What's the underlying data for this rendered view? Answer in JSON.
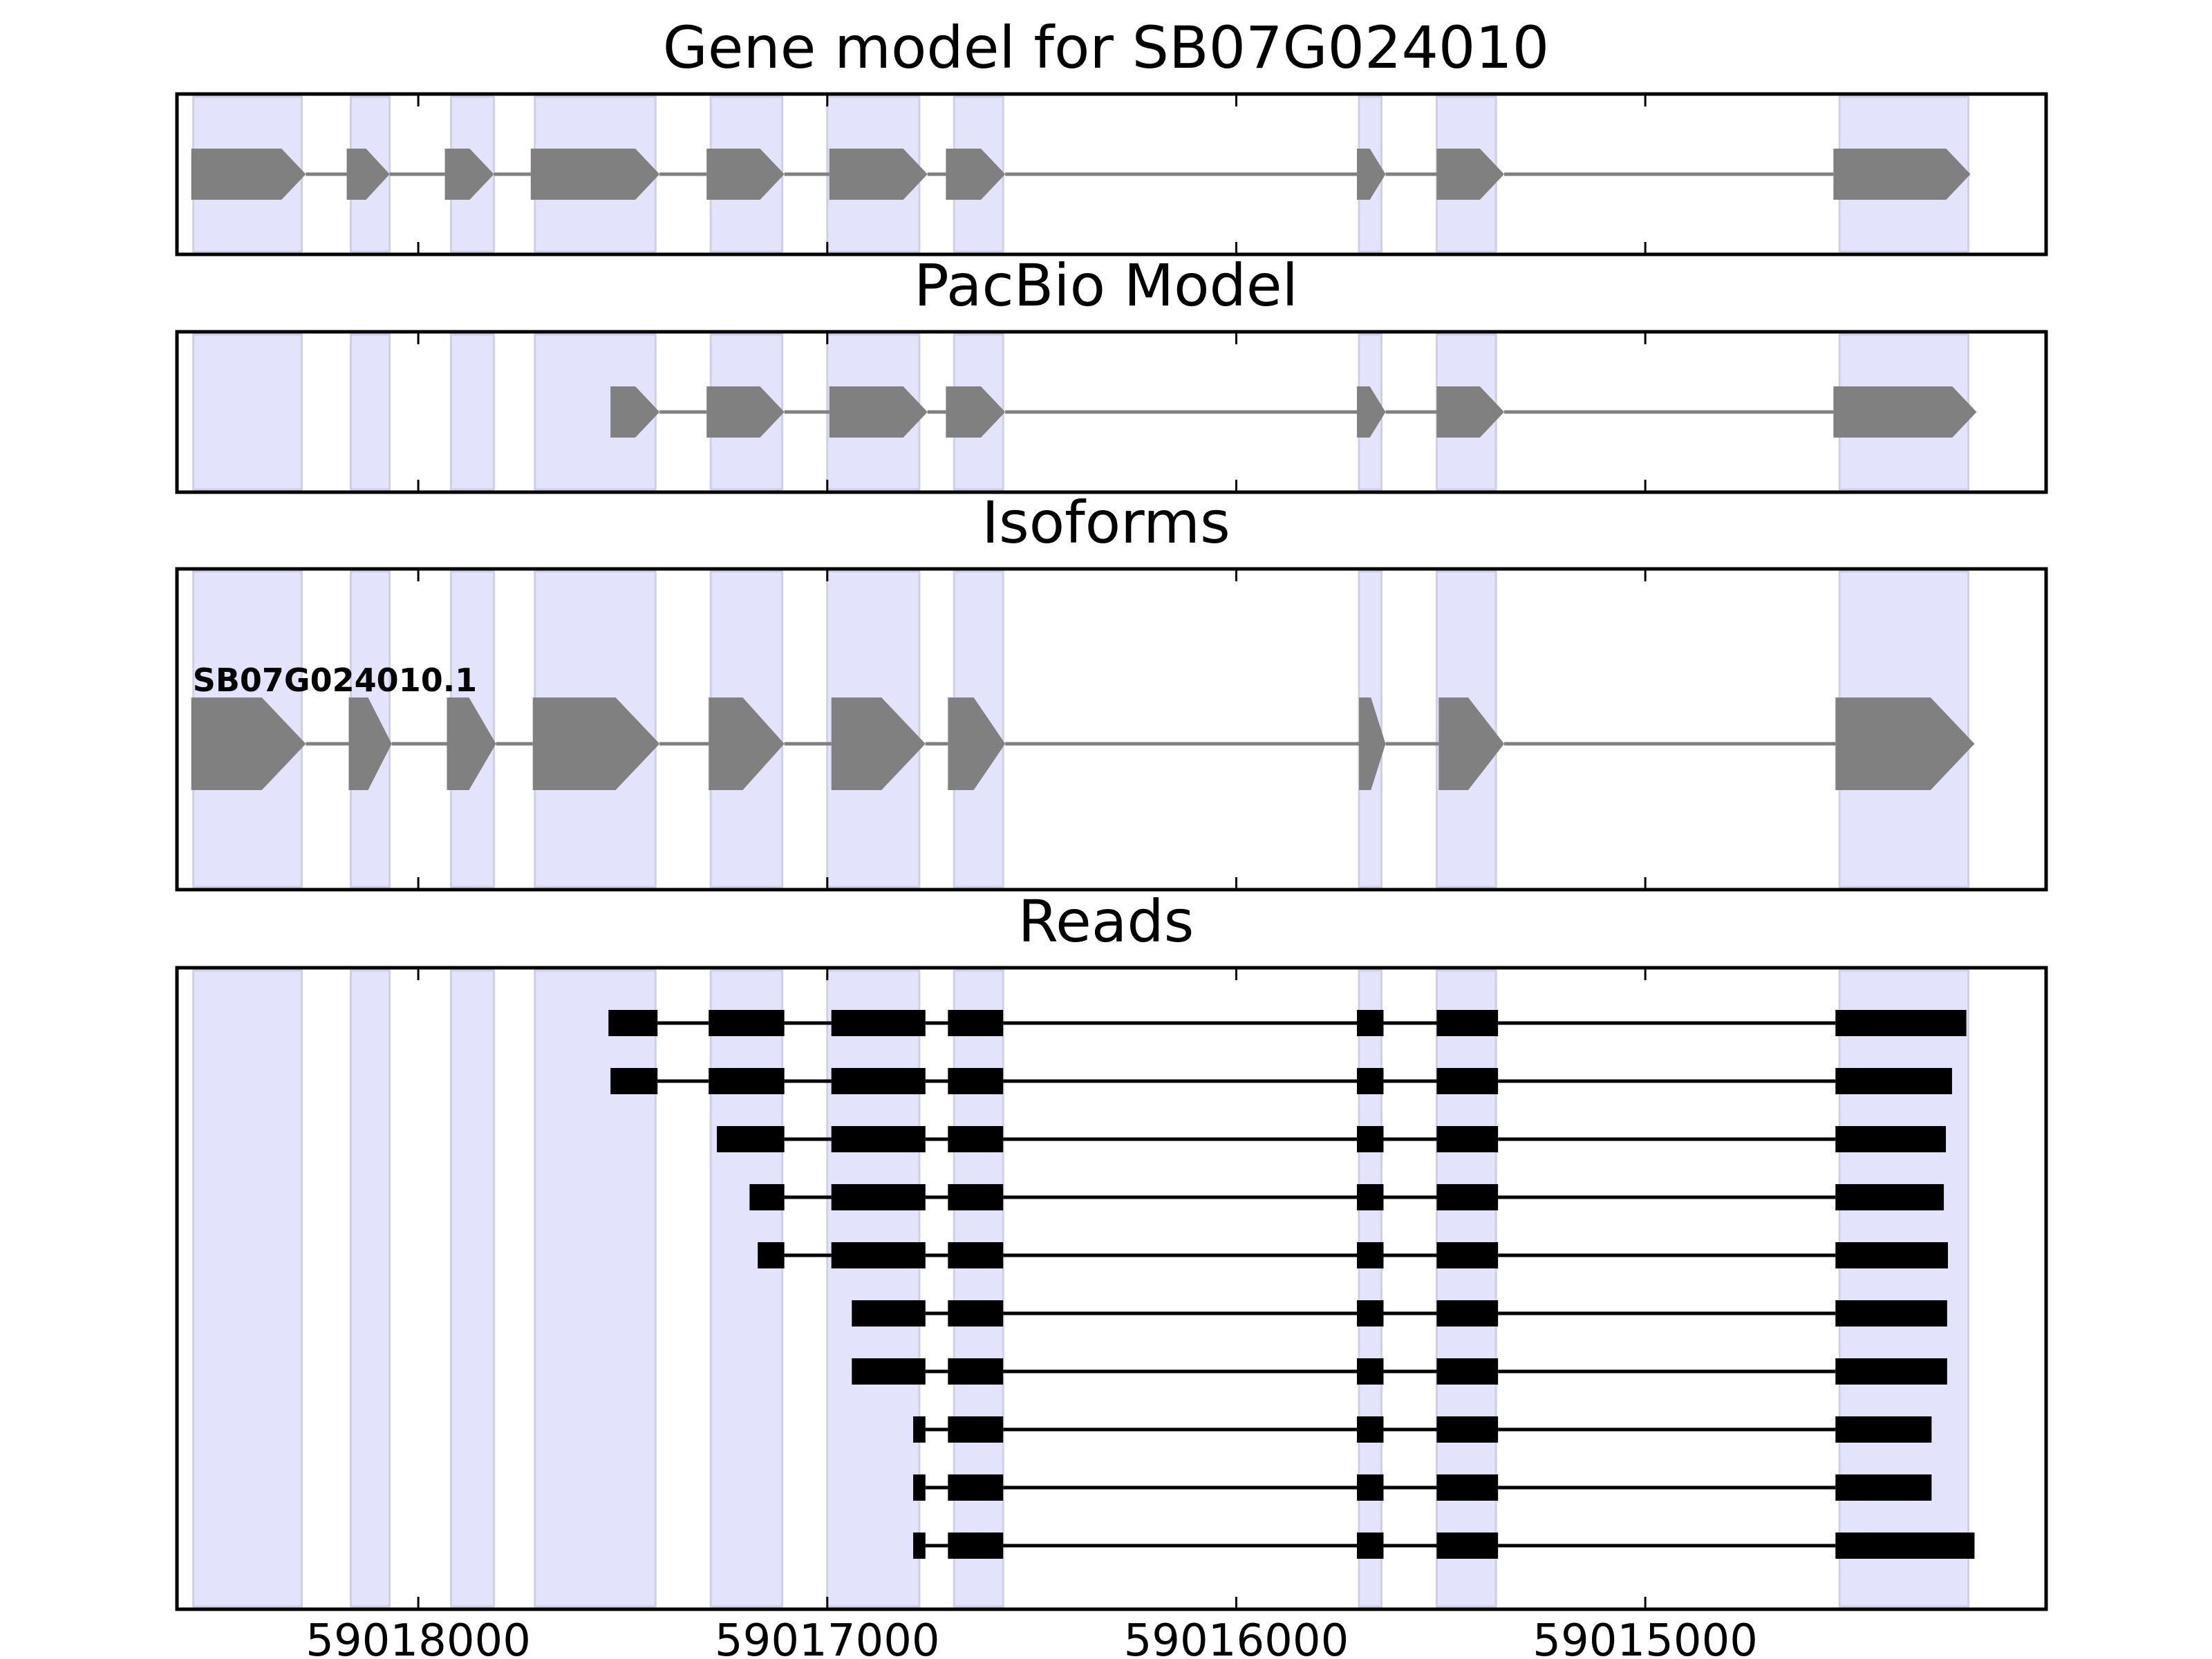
{
  "chart_data": {
    "type": "gene_model_tracks",
    "x_axis": {
      "label": "",
      "reversed": true,
      "range": [
        59018590,
        59014020
      ],
      "ticks": [
        59018000,
        59017000,
        59016000,
        59015000
      ],
      "tick_labels": [
        "59018000",
        "59017000",
        "59016000",
        "59015000"
      ]
    },
    "highlight_regions": [
      [
        59018550,
        59018285
      ],
      [
        59018165,
        59018070
      ],
      [
        59017920,
        59017815
      ],
      [
        59017715,
        59017420
      ],
      [
        59017285,
        59017110
      ],
      [
        59017000,
        59016775
      ],
      [
        59016690,
        59016570
      ],
      [
        59015700,
        59015645
      ],
      [
        59015510,
        59015365
      ],
      [
        59014525,
        59014210
      ]
    ],
    "gene_model": {
      "title": "Gene model for SB07G024010",
      "exons": [
        [
          59018555,
          59018275
        ],
        [
          59018175,
          59018070
        ],
        [
          59017935,
          59017815
        ],
        [
          59017725,
          59017410
        ],
        [
          59017295,
          59017105
        ],
        [
          59016995,
          59016755
        ],
        [
          59016710,
          59016565
        ],
        [
          59015705,
          59015635
        ],
        [
          59015510,
          59015345
        ],
        [
          59014540,
          59014205
        ]
      ]
    },
    "pacbio_model": {
      "title": "PacBio Model",
      "exons": [
        [
          59017530,
          59017410
        ],
        [
          59017295,
          59017105
        ],
        [
          59016995,
          59016755
        ],
        [
          59016710,
          59016565
        ],
        [
          59015705,
          59015635
        ],
        [
          59015510,
          59015345
        ],
        [
          59014540,
          59014190
        ]
      ]
    },
    "isoforms": {
      "title": "Isoforms",
      "items": [
        {
          "name": "SB07G024010.1",
          "exons": [
            [
              59018555,
              59018275
            ],
            [
              59018170,
              59018065
            ],
            [
              59017930,
              59017810
            ],
            [
              59017720,
              59017410
            ],
            [
              59017290,
              59017105
            ],
            [
              59016990,
              59016760
            ],
            [
              59016705,
              59016565
            ],
            [
              59015700,
              59015635
            ],
            [
              59015505,
              59015345
            ],
            [
              59014535,
              59014195
            ]
          ]
        }
      ]
    },
    "reads": {
      "title": "Reads",
      "items": [
        {
          "exons": [
            [
              59017535,
              59017415
            ],
            [
              59017290,
              59017105
            ],
            [
              59016990,
              59016760
            ],
            [
              59016705,
              59016570
            ],
            [
              59015705,
              59015640
            ],
            [
              59015510,
              59015360
            ],
            [
              59014535,
              59014215
            ]
          ]
        },
        {
          "exons": [
            [
              59017530,
              59017415
            ],
            [
              59017290,
              59017105
            ],
            [
              59016990,
              59016760
            ],
            [
              59016705,
              59016570
            ],
            [
              59015705,
              59015640
            ],
            [
              59015510,
              59015360
            ],
            [
              59014535,
              59014250
            ]
          ]
        },
        {
          "exons": [
            [
              59017270,
              59017105
            ],
            [
              59016990,
              59016760
            ],
            [
              59016705,
              59016570
            ],
            [
              59015705,
              59015640
            ],
            [
              59015510,
              59015360
            ],
            [
              59014535,
              59014265
            ]
          ]
        },
        {
          "exons": [
            [
              59017190,
              59017105
            ],
            [
              59016990,
              59016760
            ],
            [
              59016705,
              59016570
            ],
            [
              59015705,
              59015640
            ],
            [
              59015510,
              59015360
            ],
            [
              59014535,
              59014270
            ]
          ]
        },
        {
          "exons": [
            [
              59017170,
              59017105
            ],
            [
              59016990,
              59016760
            ],
            [
              59016705,
              59016570
            ],
            [
              59015705,
              59015640
            ],
            [
              59015510,
              59015360
            ],
            [
              59014535,
              59014260
            ]
          ]
        },
        {
          "exons": [
            [
              59016940,
              59016760
            ],
            [
              59016705,
              59016570
            ],
            [
              59015705,
              59015640
            ],
            [
              59015510,
              59015360
            ],
            [
              59014535,
              59014262
            ]
          ]
        },
        {
          "exons": [
            [
              59016940,
              59016760
            ],
            [
              59016705,
              59016570
            ],
            [
              59015705,
              59015640
            ],
            [
              59015510,
              59015360
            ],
            [
              59014535,
              59014262
            ]
          ]
        },
        {
          "exons": [
            [
              59016790,
              59016760
            ],
            [
              59016705,
              59016570
            ],
            [
              59015705,
              59015640
            ],
            [
              59015510,
              59015360
            ],
            [
              59014535,
              59014300
            ]
          ]
        },
        {
          "exons": [
            [
              59016790,
              59016760
            ],
            [
              59016705,
              59016570
            ],
            [
              59015705,
              59015640
            ],
            [
              59015510,
              59015360
            ],
            [
              59014535,
              59014300
            ]
          ]
        },
        {
          "exons": [
            [
              59016790,
              59016760
            ],
            [
              59016705,
              59016570
            ],
            [
              59015705,
              59015640
            ],
            [
              59015510,
              59015360
            ],
            [
              59014535,
              59014195
            ]
          ]
        }
      ]
    },
    "colors": {
      "highlight": "#e3e3fb",
      "highlight_edge": "#cfcfe8",
      "model_exon": "#808080",
      "model_intron": "#808080",
      "read_exon": "#000000",
      "read_intron": "#000000",
      "frame": "#000000"
    }
  }
}
